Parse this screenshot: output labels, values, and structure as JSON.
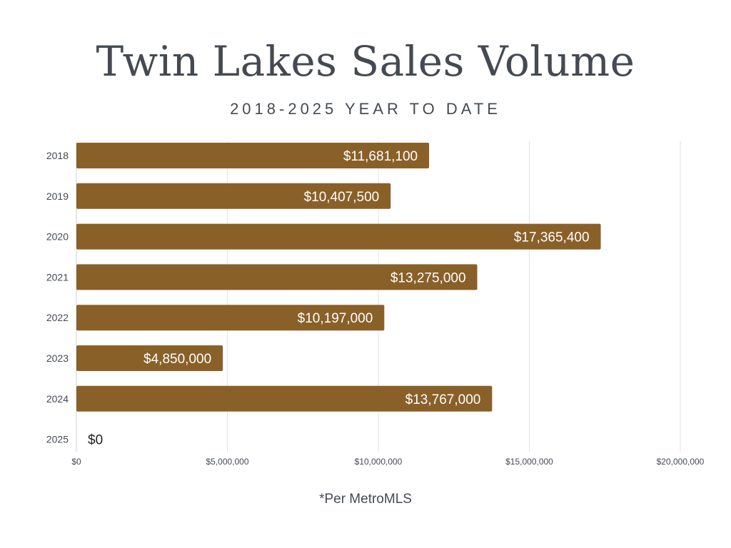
{
  "chart_data": {
    "type": "bar",
    "orientation": "horizontal",
    "title": "Twin Lakes Sales Volume",
    "subtitle": "2018-2025 YEAR TO DATE",
    "categories": [
      "2018",
      "2019",
      "2020",
      "2021",
      "2022",
      "2023",
      "2024",
      "2025"
    ],
    "values": [
      11681100,
      10407500,
      17365400,
      13275000,
      10197000,
      4850000,
      13767000,
      0
    ],
    "data_labels": [
      "$11,681,100",
      "$10,407,500",
      "$17,365,400",
      "$13,275,000",
      "$10,197,000",
      "$4,850,000",
      "$13,767,000",
      "$0"
    ],
    "xlim": [
      0,
      20000000
    ],
    "x_ticks": [
      0,
      5000000,
      10000000,
      15000000,
      20000000
    ],
    "x_tick_labels": [
      "$0",
      "$5,000,000",
      "$10,000,000",
      "$15,000,000",
      "$20,000,000"
    ],
    "grid": "vertical",
    "bar_color": "#8a6029",
    "label_color": "#ffffff",
    "footnote": "*Per MetroMLS"
  }
}
